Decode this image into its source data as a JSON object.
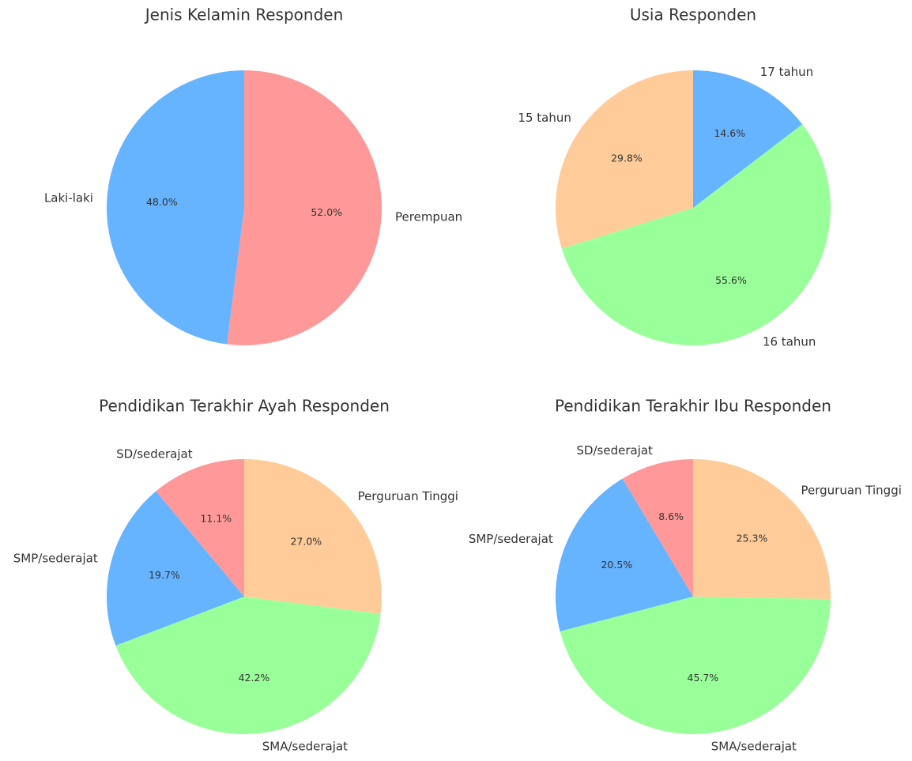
{
  "chart_data": [
    {
      "type": "pie",
      "title": "Jenis Kelamin Responden",
      "categories": [
        "Laki-laki",
        "Perempuan"
      ],
      "values": [
        48.0,
        52.0
      ],
      "value_labels": [
        "48.0%",
        "52.0%"
      ],
      "colors": [
        "#66b3ff",
        "#ff9999"
      ]
    },
    {
      "type": "pie",
      "title": "Usia Responden",
      "categories": [
        "15 tahun",
        "16 tahun",
        "17 tahun"
      ],
      "values": [
        29.8,
        55.6,
        14.6
      ],
      "value_labels": [
        "29.8%",
        "55.6%",
        "14.6%"
      ],
      "colors": [
        "#ffcc99",
        "#99ff99",
        "#66b3ff"
      ]
    },
    {
      "type": "pie",
      "title": "Pendidikan Terakhir Ayah Responden",
      "categories": [
        "SD/sederajat",
        "SMP/sederajat",
        "SMA/sederajat",
        "Perguruan Tinggi"
      ],
      "values": [
        11.1,
        19.7,
        42.2,
        27.0
      ],
      "value_labels": [
        "11.1%",
        "19.7%",
        "42.2%",
        "27.0%"
      ],
      "colors": [
        "#ff9999",
        "#66b3ff",
        "#99ff99",
        "#ffcc99"
      ]
    },
    {
      "type": "pie",
      "title": "Pendidikan Terakhir Ibu Responden",
      "categories": [
        "SD/sederajat",
        "SMP/sederajat",
        "SMA/sederajat",
        "Perguruan Tinggi"
      ],
      "values": [
        8.6,
        20.5,
        45.7,
        25.3
      ],
      "value_labels": [
        "8.6%",
        "20.5%",
        "45.7%",
        "25.3%"
      ],
      "colors": [
        "#ff9999",
        "#66b3ff",
        "#99ff99",
        "#ffcc99"
      ]
    }
  ]
}
